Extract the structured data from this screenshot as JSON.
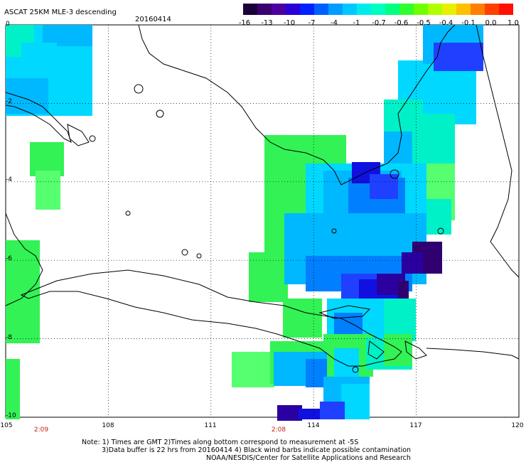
{
  "title": "ASCAT 25KM MLE-3 descending",
  "date": "20160414",
  "colorbar": {
    "labels": [
      "-16",
      "-13",
      "-10",
      "-7",
      "-4",
      "-1",
      "-0.7",
      "-0.6",
      "-0.5",
      "-0.4",
      "-0.1",
      "0.0",
      "1.0"
    ],
    "colors": [
      "#1c0038",
      "#3a0070",
      "#4c00a0",
      "#2a00d8",
      "#0020ff",
      "#0060ff",
      "#009cff",
      "#00c8ff",
      "#00ecec",
      "#00ffc0",
      "#00ff80",
      "#30ff30",
      "#70ff00",
      "#b0ff00",
      "#e8f000",
      "#ffc000",
      "#ff8000",
      "#ff4000",
      "#ff1000"
    ]
  },
  "axes": {
    "lat_labels": [
      "0",
      "-2",
      "-4",
      "-6",
      "-8",
      "-10"
    ],
    "lon_labels": [
      "105",
      "108",
      "111",
      "114",
      "117",
      "120"
    ]
  },
  "times": [
    "2:09",
    "2:08"
  ],
  "notes": {
    "line1": "Note: 1) Times are GMT 2)Times along bottom correspond to measurement at -5S",
    "line2": "3)Data buffer is 22 hrs from 20160414 4) Black wind barbs indicate possible contamination",
    "line3": "NOAA/NESDIS/Center for Satellite Applications and Research"
  },
  "colors": {
    "green": "#33f255",
    "lightgreen": "#55ff70",
    "teal": "#00f0c8",
    "cyan": "#00d8ff",
    "skyblue": "#00b8ff",
    "blue": "#0080ff",
    "deepblue": "#2040ff",
    "royal": "#1010e0",
    "navy": "#2a00a0",
    "purple": "#300070",
    "timeRed": "#c02010"
  }
}
